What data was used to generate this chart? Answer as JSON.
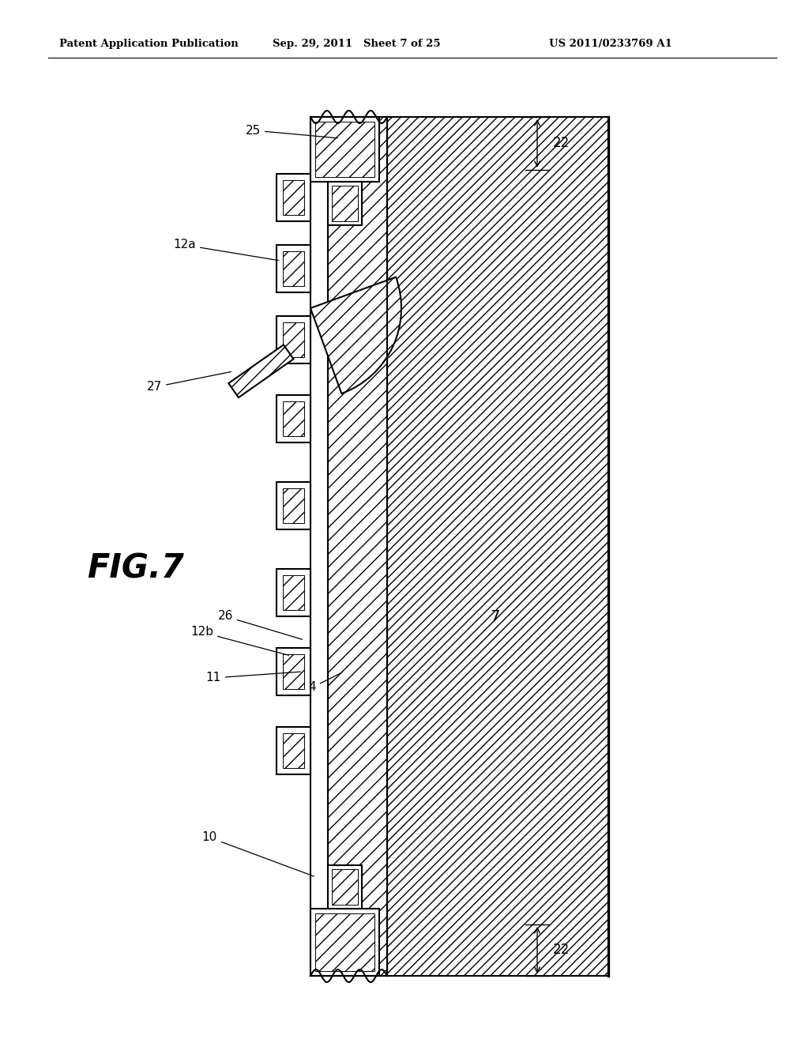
{
  "background": "#ffffff",
  "header_left": "Patent Application Publication",
  "header_mid": "Sep. 29, 2011   Sheet 7 of 25",
  "header_right": "US 2011/0233769 A1",
  "fig_label": "FIG.7"
}
